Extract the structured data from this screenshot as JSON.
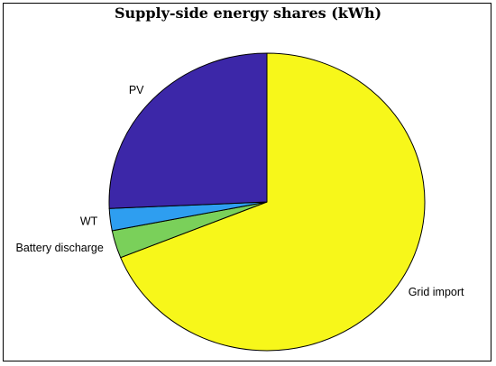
{
  "chart_data": {
    "type": "pie",
    "title": "Supply-side energy shares (kWh)",
    "slices": [
      {
        "label": "Grid import",
        "value": 68.9,
        "color": "#f7f71a"
      },
      {
        "label": "Battery discharge",
        "value": 3.0,
        "color": "#7ad05a"
      },
      {
        "label": "WT",
        "value": 2.4,
        "color": "#2e9ef0"
      },
      {
        "label": "PV",
        "value": 25.7,
        "color": "#3c27a8"
      }
    ],
    "start_angle_deg": 0,
    "direction": "clockwise",
    "edge_color": "#000000"
  }
}
